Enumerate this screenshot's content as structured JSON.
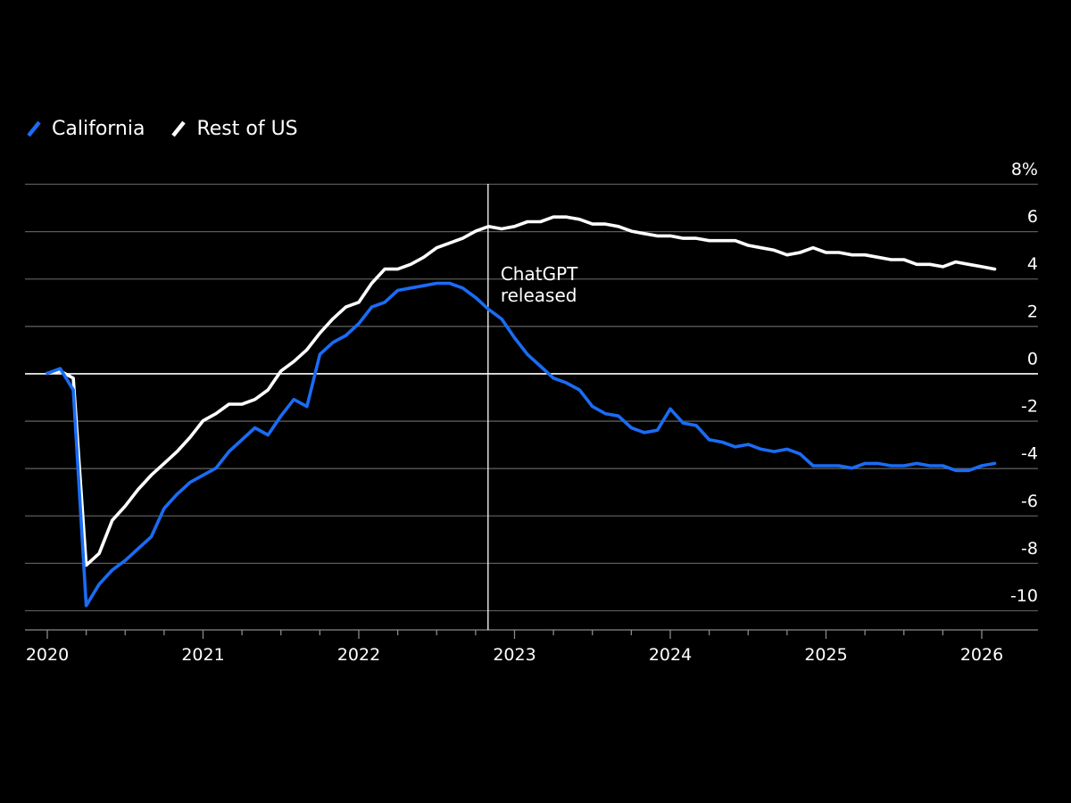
{
  "legend": [
    {
      "name": "California",
      "color": "#1a6cf5"
    },
    {
      "name": "Rest of US",
      "color": "#ffffff"
    }
  ],
  "chart_data": {
    "type": "line",
    "title": "",
    "xlabel": "",
    "ylabel": "",
    "unit_suffix": "%",
    "xlim": [
      2020,
      2026.2
    ],
    "ylim": [
      -10.5,
      8
    ],
    "yticks": [
      8,
      6,
      4,
      2,
      0,
      -2,
      -4,
      -6,
      -8,
      -10
    ],
    "xticks": [
      2020,
      2021,
      2022,
      2023,
      2024,
      2025,
      2026
    ],
    "xtick_labels": [
      "2020",
      "2021",
      "2022",
      "2023",
      "2024",
      "2025",
      "2026"
    ],
    "ytick_labels": [
      "8%",
      "6",
      "4",
      "2",
      "0",
      "-2",
      "-4",
      "-6",
      "-8",
      "-10"
    ],
    "annotation": {
      "x": 2022.83,
      "lines": [
        "ChatGPT",
        "released"
      ]
    },
    "series": [
      {
        "name": "California",
        "color": "#1a6cf5",
        "x": [
          2020.0,
          2020.083,
          2020.167,
          2020.25,
          2020.333,
          2020.417,
          2020.5,
          2020.583,
          2020.667,
          2020.75,
          2020.833,
          2020.917,
          2021.0,
          2021.083,
          2021.167,
          2021.25,
          2021.333,
          2021.417,
          2021.5,
          2021.583,
          2021.667,
          2021.75,
          2021.833,
          2021.917,
          2022.0,
          2022.083,
          2022.167,
          2022.25,
          2022.333,
          2022.417,
          2022.5,
          2022.583,
          2022.667,
          2022.75,
          2022.833,
          2022.917,
          2023.0,
          2023.083,
          2023.167,
          2023.25,
          2023.333,
          2023.417,
          2023.5,
          2023.583,
          2023.667,
          2023.75,
          2023.833,
          2023.917,
          2024.0,
          2024.083,
          2024.167,
          2024.25,
          2024.333,
          2024.417,
          2024.5,
          2024.583,
          2024.667,
          2024.75,
          2024.833,
          2024.917,
          2025.0,
          2025.083,
          2025.167,
          2025.25,
          2025.333,
          2025.417,
          2025.5,
          2025.583,
          2025.667,
          2025.75,
          2025.833,
          2025.917,
          2026.0,
          2026.083
        ],
        "values": [
          0,
          0.2,
          -0.7,
          -9.8,
          -8.9,
          -8.3,
          -7.9,
          -7.4,
          -6.9,
          -5.7,
          -5.1,
          -4.6,
          -4.3,
          -4.0,
          -3.3,
          -2.8,
          -2.3,
          -2.6,
          -1.8,
          -1.1,
          -1.4,
          0.8,
          1.3,
          1.6,
          2.1,
          2.8,
          3.0,
          3.5,
          3.6,
          3.7,
          3.8,
          3.8,
          3.6,
          3.2,
          2.7,
          2.3,
          1.5,
          0.8,
          0.3,
          -0.2,
          -0.4,
          -0.7,
          -1.4,
          -1.7,
          -1.8,
          -2.3,
          -2.5,
          -2.4,
          -1.5,
          -2.1,
          -2.2,
          -2.8,
          -2.9,
          -3.1,
          -3.0,
          -3.2,
          -3.3,
          -3.2,
          -3.4,
          -3.9,
          -3.9,
          -3.9,
          -4.0,
          -3.8,
          -3.8,
          -3.9,
          -3.9,
          -3.8,
          -3.9,
          -3.9,
          -4.1,
          -4.1,
          -3.9,
          -3.8
        ]
      },
      {
        "name": "Rest of US",
        "color": "#ffffff",
        "x": [
          2020.0,
          2020.083,
          2020.167,
          2020.25,
          2020.333,
          2020.417,
          2020.5,
          2020.583,
          2020.667,
          2020.75,
          2020.833,
          2020.917,
          2021.0,
          2021.083,
          2021.167,
          2021.25,
          2021.333,
          2021.417,
          2021.5,
          2021.583,
          2021.667,
          2021.75,
          2021.833,
          2021.917,
          2022.0,
          2022.083,
          2022.167,
          2022.25,
          2022.333,
          2022.417,
          2022.5,
          2022.583,
          2022.667,
          2022.75,
          2022.833,
          2022.917,
          2023.0,
          2023.083,
          2023.167,
          2023.25,
          2023.333,
          2023.417,
          2023.5,
          2023.583,
          2023.667,
          2023.75,
          2023.833,
          2023.917,
          2024.0,
          2024.083,
          2024.167,
          2024.25,
          2024.333,
          2024.417,
          2024.5,
          2024.583,
          2024.667,
          2024.75,
          2024.833,
          2024.917,
          2025.0,
          2025.083,
          2025.167,
          2025.25,
          2025.333,
          2025.417,
          2025.5,
          2025.583,
          2025.667,
          2025.75,
          2025.833,
          2025.917,
          2026.0,
          2026.083
        ],
        "values": [
          0,
          0.1,
          -0.2,
          -8.1,
          -7.6,
          -6.2,
          -5.6,
          -4.9,
          -4.3,
          -3.8,
          -3.3,
          -2.7,
          -2.0,
          -1.7,
          -1.3,
          -1.3,
          -1.1,
          -0.7,
          0.1,
          0.5,
          1.0,
          1.7,
          2.3,
          2.8,
          3.0,
          3.8,
          4.4,
          4.4,
          4.6,
          4.9,
          5.3,
          5.5,
          5.7,
          6.0,
          6.2,
          6.1,
          6.2,
          6.4,
          6.4,
          6.6,
          6.6,
          6.5,
          6.3,
          6.3,
          6.2,
          6.0,
          5.9,
          5.8,
          5.8,
          5.7,
          5.7,
          5.6,
          5.6,
          5.6,
          5.4,
          5.3,
          5.2,
          5.0,
          5.1,
          5.3,
          5.1,
          5.1,
          5.0,
          5.0,
          4.9,
          4.8,
          4.8,
          4.6,
          4.6,
          4.5,
          4.7,
          4.6,
          4.5,
          4.4
        ]
      }
    ]
  }
}
